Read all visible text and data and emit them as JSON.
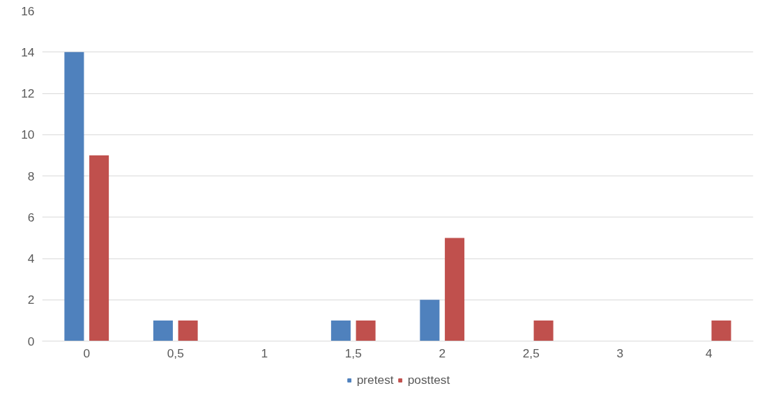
{
  "chart_data": {
    "type": "bar",
    "categories": [
      "0",
      "0,5",
      "1",
      "1,5",
      "2",
      "2,5",
      "3",
      "4"
    ],
    "series": [
      {
        "name": "pretest",
        "color": "#4f81bd",
        "values": [
          14,
          1,
          0,
          1,
          2,
          0,
          0,
          0
        ]
      },
      {
        "name": "posttest",
        "color": "#c0504d",
        "values": [
          9,
          1,
          0,
          1,
          5,
          1,
          0,
          1
        ]
      }
    ],
    "ylim": [
      0,
      16
    ],
    "yticks": [
      0,
      2,
      4,
      6,
      8,
      10,
      12,
      14,
      16
    ],
    "grid": "y",
    "legend": "bottom"
  }
}
